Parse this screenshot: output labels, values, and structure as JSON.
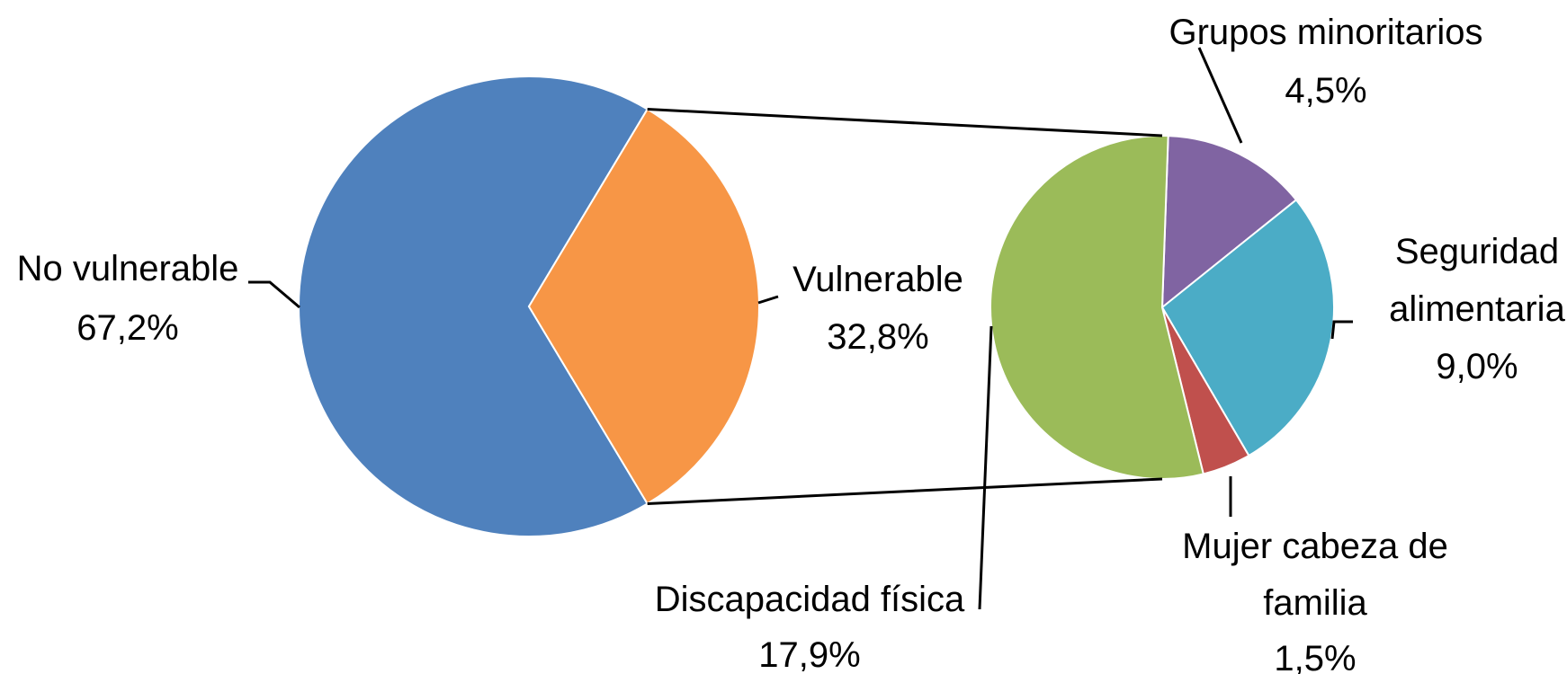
{
  "chart_data": {
    "type": "bar-of-pie",
    "main_pie": {
      "slices": [
        {
          "name": "No vulnerable",
          "value": 67.2,
          "label": "67,2%",
          "color": "#4F81BD"
        },
        {
          "name": "Vulnerable",
          "value": 32.8,
          "label": "32,8%",
          "color": "#F79646"
        }
      ]
    },
    "secondary_pie": {
      "parent": "Vulnerable",
      "slices": [
        {
          "name": "Grupos minoritarios",
          "value": 4.5,
          "label": "4,5%",
          "color": "#8064A2"
        },
        {
          "name": "Seguridad alimentaria",
          "value": 9.0,
          "label": "9,0%",
          "color": "#4BACC6"
        },
        {
          "name": "Mujer cabeza de familia",
          "value": 1.5,
          "label": "1,5%",
          "color": "#C0504D"
        },
        {
          "name": "Discapacidad física",
          "value": 17.9,
          "label": "17,9%",
          "color": "#9BBB59"
        }
      ]
    },
    "legend": "none",
    "labels": {
      "no_vulnerable": {
        "name": "No vulnerable",
        "pct": "67,2%"
      },
      "vulnerable": {
        "name": "Vulnerable",
        "pct": "32,8%"
      },
      "grupos": {
        "name": "Grupos minoritarios",
        "pct": "4,5%"
      },
      "seguridad": {
        "name1": "Seguridad",
        "name2": "alimentaria",
        "pct": "9,0%"
      },
      "mujer": {
        "name1": "Mujer cabeza de",
        "name2": "familia",
        "pct": "1,5%"
      },
      "discapacidad": {
        "name": "Discapacidad física",
        "pct": "17,9%"
      }
    }
  }
}
